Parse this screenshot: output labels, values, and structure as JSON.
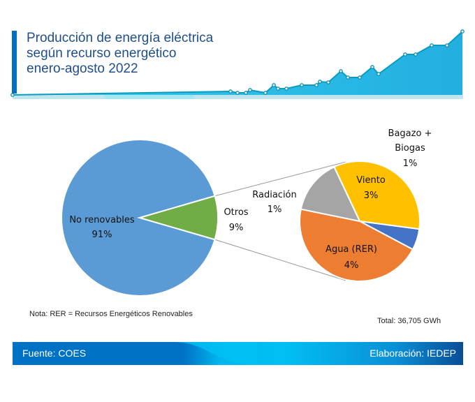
{
  "header": {
    "title_lines": [
      "Producción de energía eléctrica",
      "según recurso energético",
      "enero-agosto 2022"
    ]
  },
  "chart_data": {
    "type": "pie",
    "subtype": "pie-of-pie",
    "title": "Producción de energía eléctrica según recurso energético enero-agosto 2022",
    "main_pie": {
      "slices": [
        {
          "label": "No renovables",
          "value": 91,
          "display": "91%",
          "color": "#5b9bd5"
        },
        {
          "label": "Otros",
          "value": 9,
          "display": "9%",
          "color": "#70ad47"
        }
      ]
    },
    "secondary_pie": {
      "parent": "Otros",
      "slices": [
        {
          "label": "Viento",
          "value": 3,
          "display": "3%",
          "color": "#ffc000"
        },
        {
          "label": "Bagazo + Biogas",
          "value": 0.5,
          "display": "1%",
          "color": "#4472c4"
        },
        {
          "label": "Agua (RER)",
          "value": 4,
          "display": "4%",
          "color": "#ed7d31"
        },
        {
          "label": "Radiación",
          "value": 1.3,
          "display": "1%",
          "color": "#a5a5a5"
        }
      ]
    },
    "legend": "none"
  },
  "labels": {
    "no_renovables": "No renovables",
    "no_renovables_pct": "91%",
    "otros": "Otros",
    "otros_pct": "9%",
    "radiacion": "Radiación",
    "radiacion_pct": "1%",
    "bagazo_line1": "Bagazo +",
    "bagazo_line2": "Biogas",
    "bagazo_pct": "1%",
    "viento": "Viento",
    "viento_pct": "3%",
    "agua": "Agua (RER)",
    "agua_pct": "4%"
  },
  "note": "Nota: RER = Recursos Energéticos Renovables",
  "total": "Total: 36,705 GWh",
  "footer": {
    "source": "Fuente: COES",
    "credit": "Elaboración: IEDEP"
  },
  "colors": {
    "title": "#1f4e8c",
    "accent": "#0070c0",
    "line": "#0a9bbf",
    "area": "#1ec0e8"
  }
}
